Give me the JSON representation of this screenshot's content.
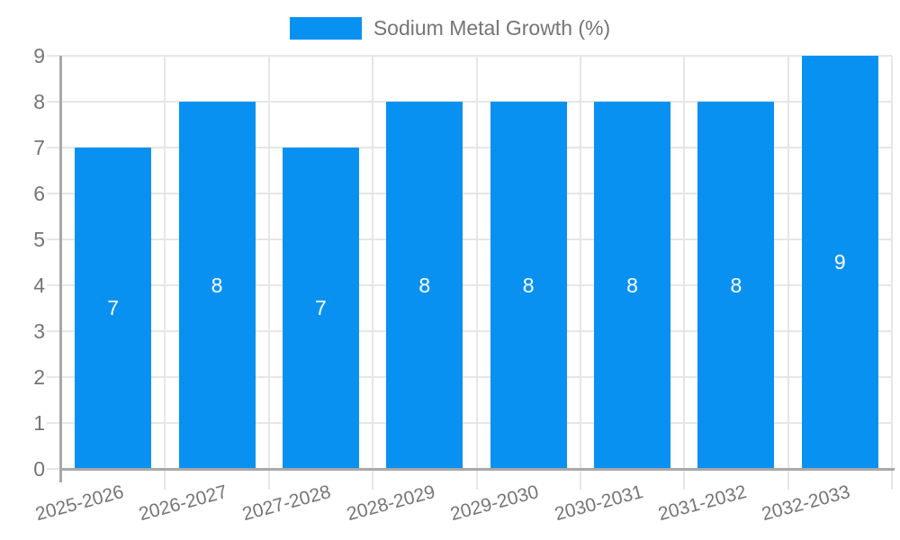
{
  "chart_data": {
    "type": "bar",
    "title": "",
    "legend": {
      "label": "Sodium Metal Growth (%)",
      "position": "top"
    },
    "categories": [
      "2025-2026",
      "2026-2027",
      "2027-2028",
      "2028-2029",
      "2029-2030",
      "2030-2031",
      "2031-2032",
      "2032-2033"
    ],
    "values": [
      7,
      8,
      7,
      8,
      8,
      8,
      8,
      9
    ],
    "series": [
      {
        "name": "Sodium Metal Growth (%)",
        "values": [
          7,
          8,
          7,
          8,
          8,
          8,
          8,
          9
        ]
      }
    ],
    "xlabel": "",
    "ylabel": "",
    "ylim": [
      0,
      9
    ],
    "y_ticks": [
      "0",
      "1",
      "2",
      "3",
      "4",
      "5",
      "6",
      "7",
      "8",
      "9"
    ],
    "grid": true,
    "value_labels_inside_bars": true,
    "colors": {
      "bar": "#0991F2",
      "value_label": "#FFFFFF",
      "axis_text": "#757575",
      "gridline": "#E6E6E6",
      "axis_line": "#A8A8A8"
    }
  }
}
